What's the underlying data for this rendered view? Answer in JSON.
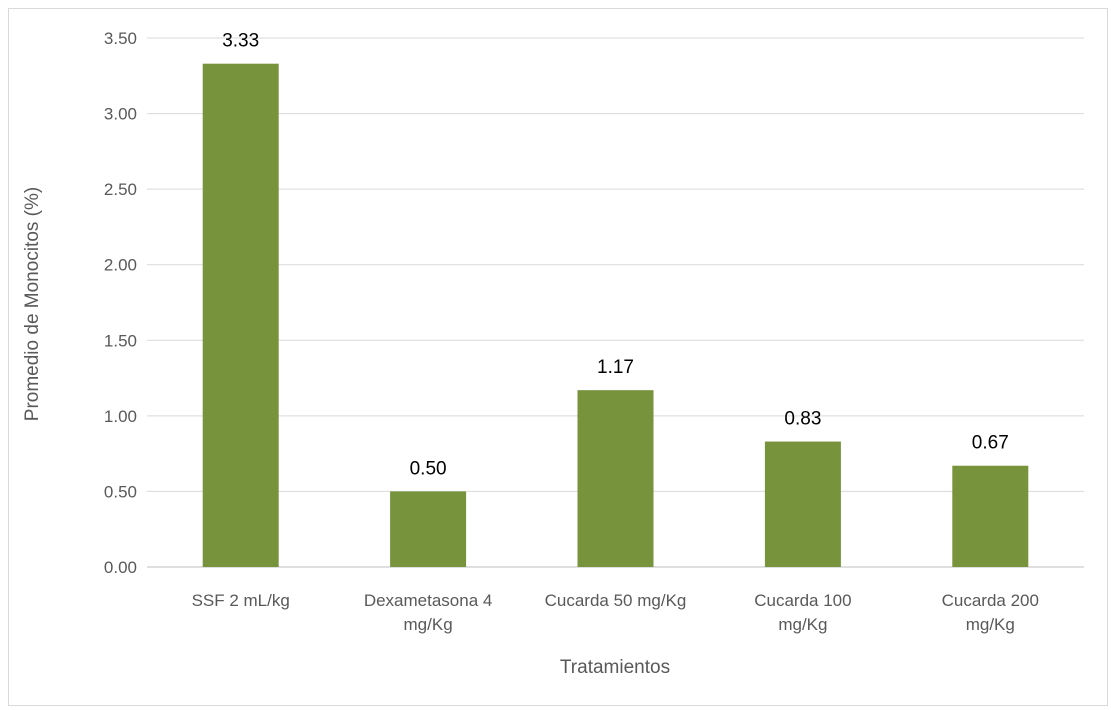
{
  "chart_data": {
    "type": "bar",
    "title": "",
    "xlabel": "Tratamientos",
    "ylabel": "Promedio de Monocitos (%)",
    "categories": [
      [
        "SSF 2 mL/kg"
      ],
      [
        "Dexametasona 4",
        "mg/Kg"
      ],
      [
        "Cucarda 50 mg/Kg"
      ],
      [
        "Cucarda 100",
        "mg/Kg"
      ],
      [
        "Cucarda 200",
        "mg/Kg"
      ]
    ],
    "values": [
      3.33,
      0.5,
      1.17,
      0.83,
      0.67
    ],
    "data_labels": [
      "3.33",
      "0.50",
      "1.17",
      "0.83",
      "0.67"
    ],
    "ylim": [
      0,
      3.5
    ],
    "yticks": [
      "0.00",
      "0.50",
      "1.00",
      "1.50",
      "2.00",
      "2.50",
      "3.00",
      "3.50"
    ],
    "grid": true,
    "legend": "none",
    "bar_color": "#77933c",
    "grid_color": "#d9d9d9"
  }
}
